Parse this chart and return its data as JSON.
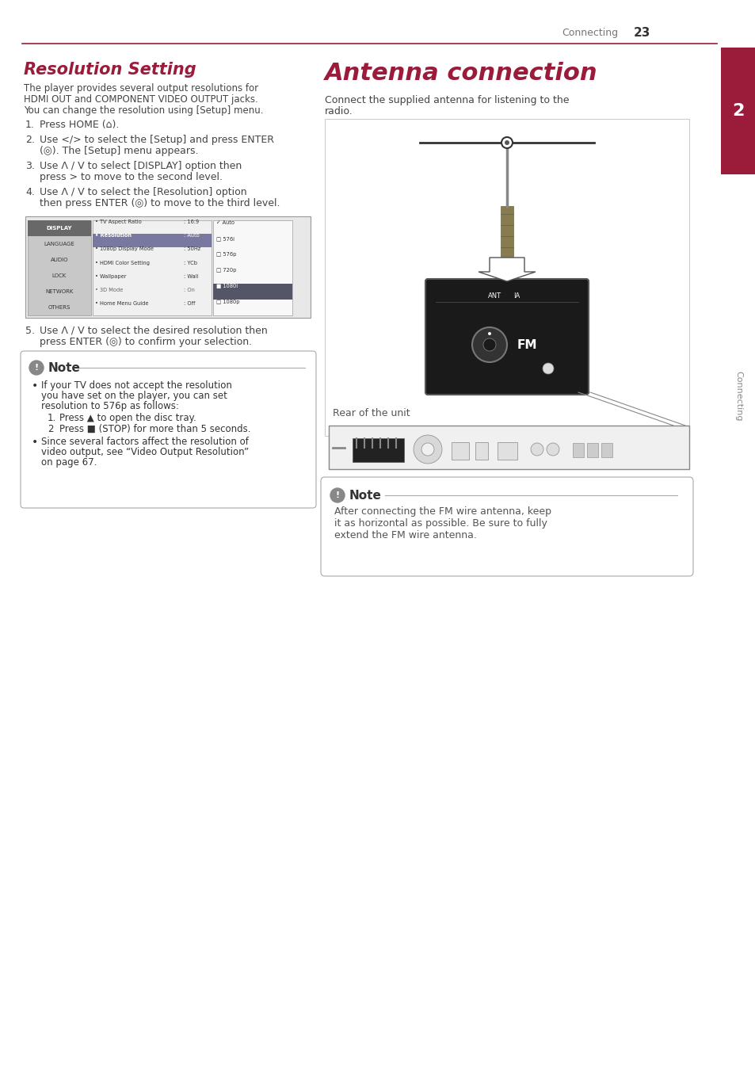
{
  "page_number": "23",
  "header_text": "Connecting",
  "header_line_color": "#9b1b3a",
  "left_title": "Resolution Setting",
  "left_title_color": "#9b1b3a",
  "right_title": "Antenna connection",
  "right_title_color": "#9b1b3a",
  "body_text_color": "#444444",
  "sidebar_color": "#9b1b3a",
  "sidebar_text": "Connecting",
  "sidebar_number": "2",
  "bg_color": "#ffffff",
  "left_body": "The player provides several output resolutions for\nHDMI OUT and COMPONENT VIDEO OUTPUT jacks.\nYou can change the resolution using [Setup] menu.",
  "steps_1_4": [
    "Press HOME (⌂).",
    "Use </> to select the [Setup] and press ENTER\n(◎). The [Setup] menu appears.",
    "Use Λ / V to select [DISPLAY] option then\npress > to move to the second level.",
    "Use Λ / V to select the [Resolution] option\nthen press ENTER (◎) to move to the third level."
  ],
  "step5": "Use Λ / V to select the desired resolution then\npress ENTER (◎) to confirm your selection.",
  "note_left_title": "Note",
  "note_left_b1": "If your TV does not accept the resolution\nyou have set on the player, you can set\nresolution to 576p as follows:",
  "note_left_sub1": "Press ▲ to open the disc tray.",
  "note_left_sub2": "Press ■ (STOP) for more than 5 seconds.",
  "note_left_b2": "Since several factors affect the resolution of\nvideo output, see “Video Output Resolution”\non page 67.",
  "right_body": "Connect the supplied antenna for listening to the\nradio.",
  "note_right_title": "Note",
  "note_right_text": "After connecting the FM wire antenna, keep\nit as horizontal as possible. Be sure to fully\nextend the FM wire antenna.",
  "rear_of_unit": "Rear of the unit"
}
